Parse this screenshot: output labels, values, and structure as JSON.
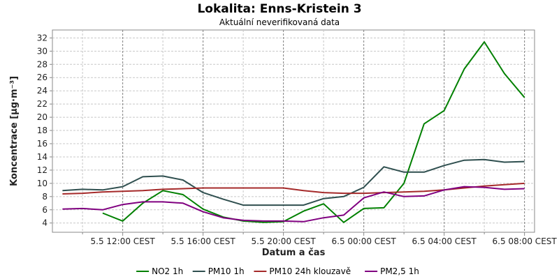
{
  "chart_data": {
    "type": "line",
    "title": "Lokalita: Enns-Kristein 3",
    "subtitle": "Aktuální neverifikovaná data",
    "xlabel": "Datum a čas",
    "ylabel": "Koncentrace [µg·m⁻³]",
    "ylim": [
      2.6,
      33.2
    ],
    "y_ticks": [
      4,
      6,
      8,
      10,
      12,
      14,
      16,
      18,
      20,
      22,
      24,
      26,
      28,
      30,
      32
    ],
    "x_unit": "hours since 5.5 12:00 CEST",
    "xlim": [
      -3.5,
      20.5
    ],
    "x_ticks": [
      {
        "x": 0,
        "label": "5.5 12:00 CEST"
      },
      {
        "x": 4,
        "label": "5.5 16:00 CEST"
      },
      {
        "x": 8,
        "label": "5.5 20:00 CEST"
      },
      {
        "x": 12,
        "label": "6.5 00:00 CEST"
      },
      {
        "x": 16,
        "label": "6.5 04:00 CEST"
      },
      {
        "x": 20,
        "label": "6.5 08:00 CEST"
      }
    ],
    "x_minor_ticks": [
      -2,
      2,
      6,
      10,
      14,
      18
    ],
    "grid": true,
    "legend_position": "bottom",
    "series": [
      {
        "name": "NO2 1h",
        "color": "#008000",
        "x": [
          -1,
          0,
          1,
          2,
          3,
          4,
          5,
          6,
          7,
          8,
          9,
          10,
          11,
          12,
          13,
          14,
          15,
          16,
          17,
          18,
          19,
          20
        ],
        "y": [
          5.5,
          4.3,
          7.0,
          8.9,
          8.3,
          6.1,
          4.9,
          4.3,
          4.1,
          4.2,
          5.8,
          6.9,
          4.1,
          6.2,
          6.3,
          10.0,
          19.0,
          21.0,
          27.3,
          31.4,
          26.6,
          23.0
        ]
      },
      {
        "name": "PM10 1h",
        "color": "#2f4f4f",
        "x": [
          -3,
          -2,
          -1,
          0,
          1,
          2,
          3,
          4,
          5,
          6,
          7,
          8,
          9,
          10,
          11,
          12,
          13,
          14,
          15,
          16,
          17,
          18,
          19,
          20
        ],
        "y": [
          8.9,
          9.1,
          9.0,
          9.5,
          11.0,
          11.1,
          10.5,
          8.6,
          7.6,
          6.7,
          6.7,
          6.7,
          6.7,
          7.7,
          8.0,
          9.4,
          12.5,
          11.7,
          11.7,
          12.7,
          13.5,
          13.6,
          13.2,
          13.3
        ]
      },
      {
        "name": "PM10 24h klouzavě",
        "color": "#a52a2a",
        "x": [
          -3,
          -2,
          -1,
          0,
          1,
          2,
          3,
          4,
          5,
          6,
          7,
          8,
          9,
          10,
          11,
          12,
          13,
          14,
          15,
          16,
          17,
          18,
          19,
          20
        ],
        "y": [
          8.4,
          8.5,
          8.7,
          8.8,
          8.9,
          9.1,
          9.2,
          9.3,
          9.3,
          9.3,
          9.3,
          9.3,
          8.9,
          8.6,
          8.5,
          8.5,
          8.6,
          8.7,
          8.8,
          9.0,
          9.3,
          9.6,
          9.8,
          10.0
        ]
      },
      {
        "name": "PM2,5 1h",
        "color": "#800080",
        "x": [
          -3,
          -2,
          -1,
          0,
          1,
          2,
          3,
          4,
          5,
          6,
          7,
          8,
          9,
          10,
          11,
          12,
          13,
          14,
          15,
          16,
          17,
          18,
          19,
          20
        ],
        "y": [
          6.1,
          6.2,
          6.0,
          6.8,
          7.2,
          7.2,
          7.0,
          5.7,
          4.8,
          4.4,
          4.3,
          4.3,
          4.2,
          4.8,
          5.2,
          7.8,
          8.7,
          8.0,
          8.1,
          9.0,
          9.5,
          9.4,
          9.1,
          9.2
        ]
      }
    ]
  }
}
